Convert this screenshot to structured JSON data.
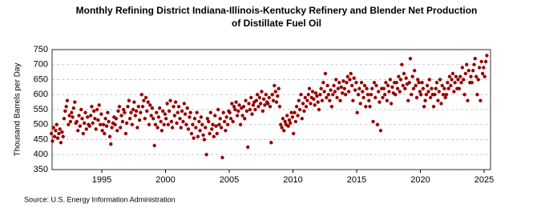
{
  "chart_data": {
    "type": "scatter",
    "title": "Monthly Refining District Indiana-Illinois-Kentucky Refinery and Blender Net Production of Distillate Fuel Oil",
    "y_label": "Thousand Barrels per Day",
    "source": "Source: U.S. Energy Information Administration",
    "color": "#990000",
    "grid": true,
    "xlim": [
      1991.1,
      2025.5
    ],
    "xticks": [
      1995,
      2000,
      2005,
      2010,
      2015,
      2020,
      2025
    ],
    "ylim": [
      350,
      750
    ],
    "yticks": [
      350,
      400,
      450,
      500,
      550,
      600,
      650,
      700,
      750
    ],
    "x": [
      1991.04,
      1991.13,
      1991.21,
      1991.29,
      1991.38,
      1991.46,
      1991.54,
      1991.63,
      1991.71,
      1991.79,
      1991.88,
      1991.96,
      1992.04,
      1992.13,
      1992.21,
      1992.29,
      1992.38,
      1992.46,
      1992.54,
      1992.63,
      1992.71,
      1992.79,
      1992.88,
      1992.96,
      1993.04,
      1993.13,
      1993.21,
      1993.29,
      1993.38,
      1993.46,
      1993.54,
      1993.63,
      1993.71,
      1993.79,
      1993.88,
      1993.96,
      1994.04,
      1994.13,
      1994.21,
      1994.29,
      1994.38,
      1994.46,
      1994.54,
      1994.63,
      1994.71,
      1994.79,
      1994.88,
      1994.96,
      1995.04,
      1995.13,
      1995.21,
      1995.29,
      1995.38,
      1995.46,
      1995.54,
      1995.63,
      1995.71,
      1995.79,
      1995.88,
      1995.96,
      1996.04,
      1996.13,
      1996.21,
      1996.29,
      1996.38,
      1996.46,
      1996.54,
      1996.63,
      1996.71,
      1996.79,
      1996.88,
      1996.96,
      1997.04,
      1997.13,
      1997.21,
      1997.29,
      1997.38,
      1997.46,
      1997.54,
      1997.63,
      1997.71,
      1997.79,
      1997.88,
      1997.96,
      1998.04,
      1998.13,
      1998.21,
      1998.29,
      1998.38,
      1998.46,
      1998.54,
      1998.63,
      1998.71,
      1998.79,
      1998.88,
      1998.96,
      1999.04,
      1999.13,
      1999.21,
      1999.29,
      1999.38,
      1999.46,
      1999.54,
      1999.63,
      1999.71,
      1999.79,
      1999.88,
      1999.96,
      2000.04,
      2000.13,
      2000.21,
      2000.29,
      2000.38,
      2000.46,
      2000.54,
      2000.63,
      2000.71,
      2000.79,
      2000.88,
      2000.96,
      2001.04,
      2001.13,
      2001.21,
      2001.29,
      2001.38,
      2001.46,
      2001.54,
      2001.63,
      2001.71,
      2001.79,
      2001.88,
      2001.96,
      2002.04,
      2002.13,
      2002.21,
      2002.29,
      2002.38,
      2002.46,
      2002.54,
      2002.63,
      2002.71,
      2002.79,
      2002.88,
      2002.96,
      2003.04,
      2003.13,
      2003.21,
      2003.29,
      2003.38,
      2003.46,
      2003.54,
      2003.63,
      2003.71,
      2003.79,
      2003.88,
      2003.96,
      2004.04,
      2004.13,
      2004.21,
      2004.29,
      2004.38,
      2004.46,
      2004.54,
      2004.63,
      2004.71,
      2004.79,
      2004.88,
      2004.96,
      2005.04,
      2005.13,
      2005.21,
      2005.29,
      2005.38,
      2005.46,
      2005.54,
      2005.63,
      2005.71,
      2005.79,
      2005.88,
      2005.96,
      2006.04,
      2006.13,
      2006.21,
      2006.29,
      2006.38,
      2006.46,
      2006.54,
      2006.63,
      2006.71,
      2006.79,
      2006.88,
      2006.96,
      2007.04,
      2007.13,
      2007.21,
      2007.29,
      2007.38,
      2007.46,
      2007.54,
      2007.63,
      2007.71,
      2007.79,
      2007.88,
      2007.96,
      2008.04,
      2008.13,
      2008.21,
      2008.29,
      2008.38,
      2008.46,
      2008.54,
      2008.63,
      2008.71,
      2008.79,
      2008.88,
      2008.96,
      2009.04,
      2009.13,
      2009.21,
      2009.29,
      2009.38,
      2009.46,
      2009.54,
      2009.63,
      2009.71,
      2009.79,
      2009.88,
      2009.96,
      2010.04,
      2010.13,
      2010.21,
      2010.29,
      2010.38,
      2010.46,
      2010.54,
      2010.63,
      2010.71,
      2010.79,
      2010.88,
      2010.96,
      2011.04,
      2011.13,
      2011.21,
      2011.29,
      2011.38,
      2011.46,
      2011.54,
      2011.63,
      2011.71,
      2011.79,
      2011.88,
      2011.96,
      2012.04,
      2012.13,
      2012.21,
      2012.29,
      2012.38,
      2012.46,
      2012.54,
      2012.63,
      2012.71,
      2012.79,
      2012.88,
      2012.96,
      2013.04,
      2013.13,
      2013.21,
      2013.29,
      2013.38,
      2013.46,
      2013.54,
      2013.63,
      2013.71,
      2013.79,
      2013.88,
      2013.96,
      2014.04,
      2014.13,
      2014.21,
      2014.29,
      2014.38,
      2014.46,
      2014.54,
      2014.63,
      2014.71,
      2014.79,
      2014.88,
      2014.96,
      2015.04,
      2015.13,
      2015.21,
      2015.29,
      2015.38,
      2015.46,
      2015.54,
      2015.63,
      2015.71,
      2015.79,
      2015.88,
      2015.96,
      2016.04,
      2016.13,
      2016.21,
      2016.29,
      2016.38,
      2016.46,
      2016.54,
      2016.63,
      2016.71,
      2016.79,
      2016.88,
      2016.96,
      2017.04,
      2017.13,
      2017.21,
      2017.29,
      2017.38,
      2017.46,
      2017.54,
      2017.63,
      2017.71,
      2017.79,
      2017.88,
      2017.96,
      2018.04,
      2018.13,
      2018.21,
      2018.29,
      2018.38,
      2018.46,
      2018.54,
      2018.63,
      2018.71,
      2018.79,
      2018.88,
      2018.96,
      2019.04,
      2019.13,
      2019.21,
      2019.29,
      2019.38,
      2019.46,
      2019.54,
      2019.63,
      2019.71,
      2019.79,
      2019.88,
      2019.96,
      2020.04,
      2020.13,
      2020.21,
      2020.29,
      2020.38,
      2020.46,
      2020.54,
      2020.63,
      2020.71,
      2020.79,
      2020.88,
      2020.96,
      2021.04,
      2021.13,
      2021.21,
      2021.29,
      2021.38,
      2021.46,
      2021.54,
      2021.63,
      2021.71,
      2021.79,
      2021.88,
      2021.96,
      2022.04,
      2022.13,
      2022.21,
      2022.29,
      2022.38,
      2022.46,
      2022.54,
      2022.63,
      2022.71,
      2022.79,
      2022.88,
      2022.96,
      2023.04,
      2023.13,
      2023.21,
      2023.29,
      2023.38,
      2023.46,
      2023.54,
      2023.63,
      2023.71,
      2023.79,
      2023.88,
      2023.96,
      2024.04,
      2024.13,
      2024.21,
      2024.29,
      2024.38,
      2024.46,
      2024.54,
      2024.63,
      2024.71,
      2024.79,
      2024.88,
      2024.96,
      2025.04,
      2025.13,
      2025.21
    ],
    "values": [
      470,
      445,
      490,
      460,
      480,
      500,
      455,
      470,
      485,
      440,
      475,
      460,
      520,
      545,
      560,
      580,
      500,
      530,
      510,
      540,
      525,
      555,
      575,
      505,
      510,
      480,
      530,
      495,
      550,
      520,
      470,
      505,
      540,
      485,
      525,
      500,
      495,
      530,
      560,
      505,
      545,
      520,
      485,
      550,
      515,
      565,
      500,
      535,
      480,
      500,
      470,
      520,
      495,
      540,
      510,
      460,
      435,
      490,
      505,
      525,
      500,
      520,
      480,
      545,
      560,
      490,
      530,
      510,
      550,
      540,
      470,
      505,
      560,
      580,
      520,
      540,
      500,
      550,
      575,
      530,
      545,
      490,
      560,
      515,
      540,
      600,
      560,
      580,
      520,
      590,
      545,
      575,
      500,
      565,
      530,
      555,
      520,
      430,
      500,
      540,
      490,
      525,
      555,
      510,
      480,
      545,
      500,
      535,
      520,
      570,
      500,
      545,
      580,
      510,
      490,
      560,
      530,
      575,
      505,
      540,
      560,
      520,
      490,
      545,
      510,
      570,
      535,
      500,
      555,
      485,
      525,
      540,
      470,
      500,
      455,
      520,
      490,
      540,
      460,
      510,
      480,
      525,
      500,
      465,
      450,
      490,
      400,
      520,
      510,
      470,
      540,
      485,
      500,
      460,
      530,
      495,
      470,
      550,
      500,
      520,
      490,
      390,
      540,
      510,
      480,
      525,
      500,
      545,
      540,
      520,
      570,
      510,
      560,
      550,
      575,
      530,
      545,
      565,
      500,
      555,
      530,
      560,
      520,
      580,
      545,
      425,
      570,
      550,
      590,
      535,
      565,
      575,
      550,
      580,
      600,
      560,
      590,
      570,
      610,
      545,
      585,
      565,
      600,
      575,
      570,
      590,
      560,
      440,
      600,
      580,
      630,
      610,
      575,
      595,
      620,
      560,
      500,
      490,
      520,
      480,
      510,
      500,
      530,
      495,
      515,
      505,
      540,
      525,
      470,
      540,
      510,
      560,
      530,
      580,
      550,
      600,
      520,
      570,
      545,
      590,
      560,
      580,
      600,
      620,
      570,
      590,
      610,
      585,
      565,
      605,
      595,
      575,
      550,
      600,
      620,
      580,
      640,
      610,
      670,
      590,
      630,
      600,
      580,
      615,
      560,
      600,
      630,
      610,
      650,
      590,
      620,
      640,
      580,
      625,
      605,
      645,
      620,
      600,
      640,
      660,
      610,
      650,
      670,
      630,
      580,
      655,
      615,
      640,
      540,
      600,
      620,
      570,
      640,
      610,
      590,
      630,
      560,
      620,
      600,
      580,
      560,
      600,
      620,
      510,
      640,
      590,
      630,
      500,
      610,
      575,
      480,
      620,
      590,
      620,
      600,
      640,
      580,
      630,
      610,
      650,
      570,
      625,
      605,
      640,
      600,
      640,
      620,
      660,
      610,
      650,
      700,
      630,
      670,
      620,
      655,
      635,
      580,
      640,
      720,
      600,
      660,
      620,
      680,
      630,
      590,
      650,
      640,
      610,
      600,
      640,
      620,
      560,
      580,
      600,
      630,
      610,
      650,
      590,
      620,
      600,
      560,
      600,
      620,
      640,
      580,
      610,
      650,
      570,
      630,
      600,
      620,
      590,
      600,
      640,
      620,
      660,
      630,
      650,
      670,
      610,
      640,
      660,
      620,
      650,
      620,
      660,
      640,
      690,
      650,
      600,
      670,
      700,
      580,
      680,
      640,
      660,
      640,
      680,
      700,
      720,
      660,
      600,
      650,
      690,
      580,
      710,
      670,
      690,
      660,
      710,
      730
    ]
  }
}
